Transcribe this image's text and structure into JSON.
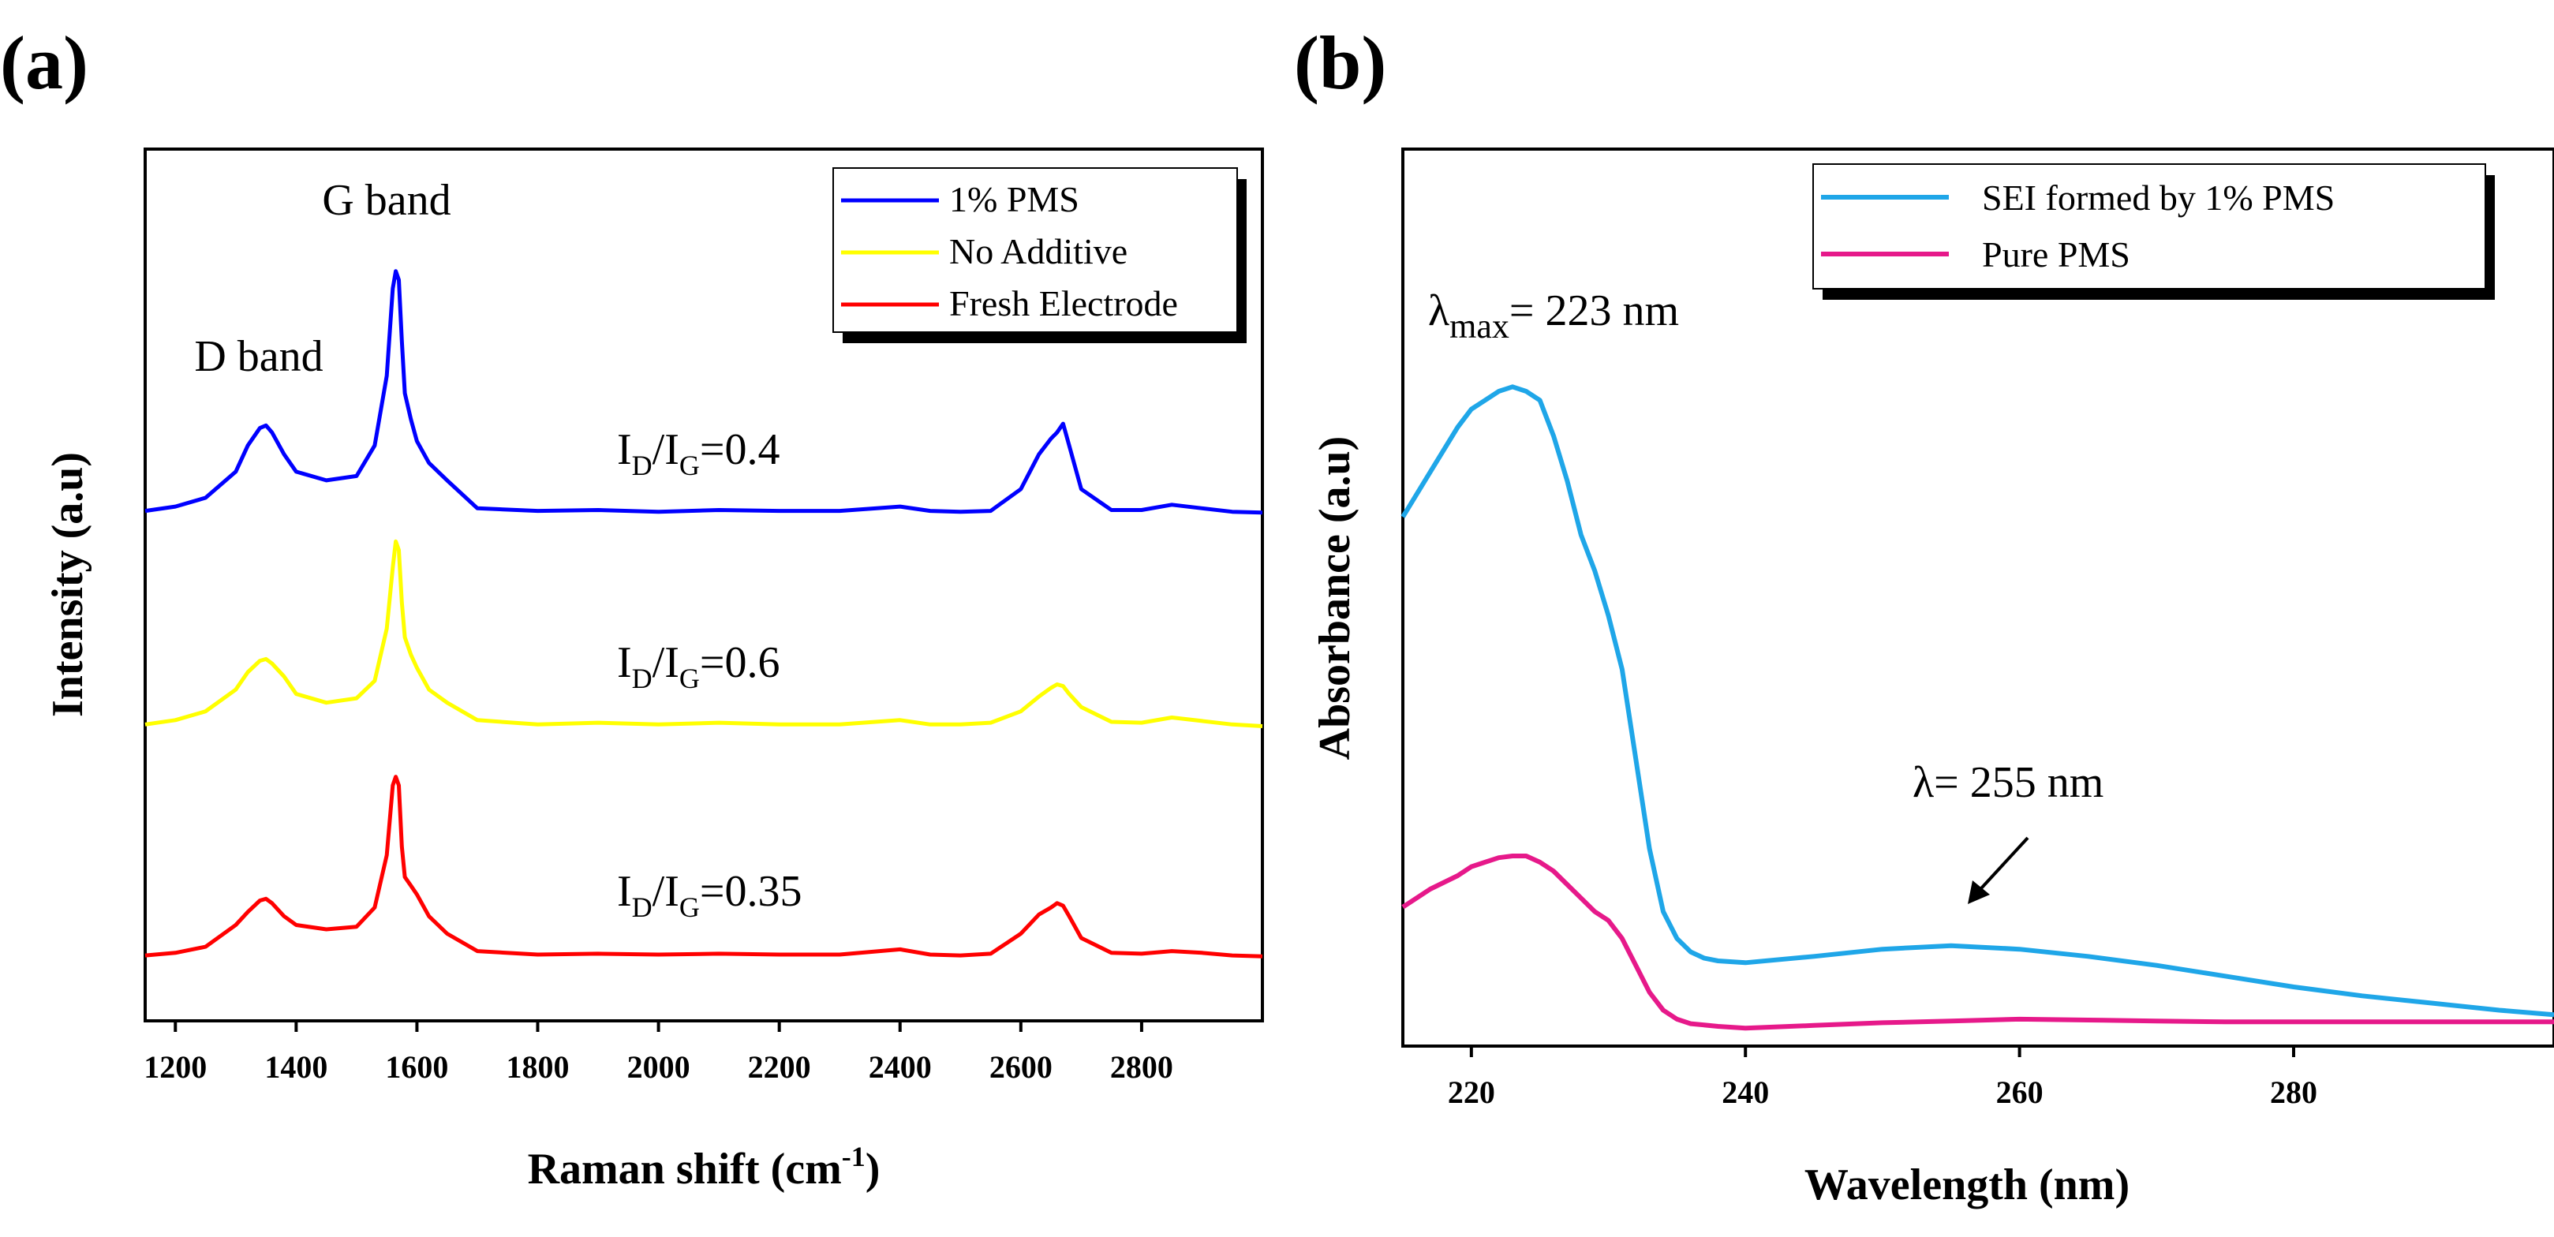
{
  "chart_data": [
    {
      "panel_label": "(a)",
      "type": "line",
      "xlabel": "Raman shift (cm",
      "xlabel_sup": "-1",
      "xlabel_end": ")",
      "ylabel": "Intensity (a.u)",
      "xlim": [
        1150,
        3000
      ],
      "ylim": [
        0,
        1
      ],
      "x_ticks": [
        1200,
        1400,
        1600,
        1800,
        2000,
        2200,
        2400,
        2600,
        2800
      ],
      "y_ticks_shown": false,
      "legend": [
        {
          "label": "1% PMS",
          "color": "#0000ff"
        },
        {
          "label": "No Additive",
          "color": "#ffff00"
        },
        {
          "label": "Fresh Electrode",
          "color": "#ff0000"
        }
      ],
      "series": [
        {
          "name": "1% PMS",
          "color": "#0000ff",
          "x": [
            1150,
            1200,
            1250,
            1300,
            1320,
            1340,
            1350,
            1360,
            1380,
            1400,
            1450,
            1500,
            1530,
            1550,
            1560,
            1565,
            1570,
            1575,
            1580,
            1590,
            1600,
            1620,
            1650,
            1700,
            1800,
            1900,
            2000,
            2100,
            2200,
            2300,
            2400,
            2450,
            2500,
            2550,
            2600,
            2630,
            2650,
            2660,
            2670,
            2680,
            2700,
            2750,
            2800,
            2850,
            2900,
            2950,
            3000
          ],
          "y": [
            0.585,
            0.59,
            0.6,
            0.63,
            0.66,
            0.68,
            0.683,
            0.675,
            0.65,
            0.63,
            0.62,
            0.625,
            0.66,
            0.74,
            0.84,
            0.86,
            0.85,
            0.78,
            0.72,
            0.69,
            0.665,
            0.64,
            0.62,
            0.588,
            0.585,
            0.586,
            0.584,
            0.586,
            0.585,
            0.585,
            0.59,
            0.585,
            0.584,
            0.585,
            0.61,
            0.65,
            0.668,
            0.675,
            0.685,
            0.66,
            0.61,
            0.586,
            0.586,
            0.592,
            0.588,
            0.584,
            0.583
          ]
        },
        {
          "name": "No Additive",
          "color": "#ffff00",
          "x": [
            1150,
            1200,
            1250,
            1300,
            1320,
            1340,
            1350,
            1360,
            1380,
            1400,
            1450,
            1500,
            1530,
            1550,
            1560,
            1565,
            1570,
            1575,
            1580,
            1590,
            1600,
            1620,
            1650,
            1700,
            1800,
            1900,
            2000,
            2100,
            2200,
            2300,
            2400,
            2450,
            2500,
            2550,
            2600,
            2630,
            2650,
            2660,
            2670,
            2680,
            2700,
            2750,
            2800,
            2850,
            2900,
            2950,
            3000
          ],
          "y": [
            0.34,
            0.345,
            0.355,
            0.38,
            0.4,
            0.413,
            0.415,
            0.41,
            0.395,
            0.375,
            0.365,
            0.37,
            0.39,
            0.45,
            0.52,
            0.55,
            0.54,
            0.48,
            0.44,
            0.42,
            0.405,
            0.38,
            0.365,
            0.345,
            0.34,
            0.342,
            0.34,
            0.342,
            0.34,
            0.34,
            0.345,
            0.34,
            0.34,
            0.342,
            0.355,
            0.372,
            0.382,
            0.386,
            0.384,
            0.375,
            0.36,
            0.343,
            0.342,
            0.348,
            0.344,
            0.34,
            0.338
          ]
        },
        {
          "name": "Fresh Electrode",
          "color": "#ff0000",
          "x": [
            1150,
            1200,
            1250,
            1300,
            1320,
            1340,
            1350,
            1360,
            1380,
            1400,
            1450,
            1500,
            1530,
            1550,
            1560,
            1565,
            1570,
            1575,
            1580,
            1590,
            1600,
            1620,
            1650,
            1700,
            1800,
            1900,
            2000,
            2100,
            2200,
            2300,
            2400,
            2450,
            2500,
            2550,
            2600,
            2630,
            2650,
            2660,
            2670,
            2680,
            2700,
            2750,
            2800,
            2850,
            2900,
            2950,
            3000
          ],
          "y": [
            0.075,
            0.078,
            0.085,
            0.11,
            0.125,
            0.138,
            0.14,
            0.135,
            0.12,
            0.11,
            0.105,
            0.108,
            0.13,
            0.19,
            0.27,
            0.28,
            0.27,
            0.2,
            0.165,
            0.155,
            0.145,
            0.12,
            0.1,
            0.08,
            0.076,
            0.077,
            0.076,
            0.077,
            0.076,
            0.076,
            0.082,
            0.076,
            0.075,
            0.077,
            0.1,
            0.122,
            0.13,
            0.135,
            0.132,
            0.12,
            0.095,
            0.078,
            0.077,
            0.08,
            0.078,
            0.075,
            0.074
          ]
        }
      ],
      "annotations": [
        {
          "text": "G band",
          "x": 1570,
          "y": 0.88
        },
        {
          "text": "D band",
          "x": 1350,
          "y": 0.75
        },
        {
          "ratio_main": "I",
          "sub1": "D",
          "slash": "/I",
          "sub2": "G",
          "value": "=0.4",
          "x": 2060,
          "y": 0.65
        },
        {
          "ratio_main": "I",
          "sub1": "D",
          "slash": "/I",
          "sub2": "G",
          "value": "=0.6",
          "x": 2060,
          "y": 0.405
        },
        {
          "ratio_main": "I",
          "sub1": "D",
          "slash": "/I",
          "sub2": "G",
          "value": "=0.35",
          "x": 2060,
          "y": 0.12
        }
      ]
    },
    {
      "panel_label": "(b)",
      "type": "line",
      "xlabel": "Wavelength (nm)",
      "ylabel": "Absorbance (a.u)",
      "xlim": [
        215,
        299
      ],
      "ylim": [
        0,
        1
      ],
      "x_ticks": [
        220,
        240,
        260,
        280
      ],
      "y_ticks_shown": false,
      "legend": [
        {
          "label": "SEI formed by 1% PMS",
          "color": "#1fa6e8"
        },
        {
          "label": "Pure PMS",
          "color": "#e6198a"
        }
      ],
      "series": [
        {
          "name": "SEI formed by 1% PMS",
          "color": "#1fa6e8",
          "x": [
            215,
            217,
            219,
            220,
            221,
            222,
            223,
            224,
            225,
            226,
            227,
            228,
            229,
            230,
            231,
            232,
            233,
            234,
            235,
            236,
            237,
            238,
            240,
            245,
            250,
            255,
            260,
            265,
            270,
            275,
            280,
            285,
            290,
            295,
            299
          ],
          "y": [
            0.59,
            0.64,
            0.69,
            0.71,
            0.72,
            0.73,
            0.735,
            0.73,
            0.72,
            0.68,
            0.63,
            0.57,
            0.53,
            0.48,
            0.42,
            0.32,
            0.22,
            0.15,
            0.12,
            0.105,
            0.098,
            0.095,
            0.093,
            0.1,
            0.108,
            0.112,
            0.108,
            0.1,
            0.09,
            0.078,
            0.066,
            0.056,
            0.048,
            0.04,
            0.035
          ]
        },
        {
          "name": "Pure PMS",
          "color": "#e6198a",
          "x": [
            215,
            217,
            219,
            220,
            221,
            222,
            223,
            224,
            225,
            226,
            227,
            228,
            229,
            230,
            231,
            232,
            233,
            234,
            235,
            236,
            238,
            240,
            245,
            250,
            255,
            260,
            265,
            270,
            275,
            280,
            285,
            290,
            295,
            299
          ],
          "y": [
            0.155,
            0.175,
            0.19,
            0.2,
            0.205,
            0.21,
            0.212,
            0.212,
            0.205,
            0.195,
            0.18,
            0.165,
            0.15,
            0.14,
            0.12,
            0.09,
            0.06,
            0.04,
            0.03,
            0.025,
            0.022,
            0.02,
            0.023,
            0.026,
            0.028,
            0.03,
            0.029,
            0.028,
            0.027,
            0.027,
            0.027,
            0.027,
            0.027,
            0.027
          ]
        }
      ],
      "annotations": [
        {
          "lambda": "λ",
          "sub": "max",
          "value": "= 223 nm",
          "x": 223,
          "y": 0.83
        },
        {
          "lambda": "λ",
          "value": "= 255 nm",
          "x": 262,
          "y": 0.29
        }
      ]
    }
  ]
}
